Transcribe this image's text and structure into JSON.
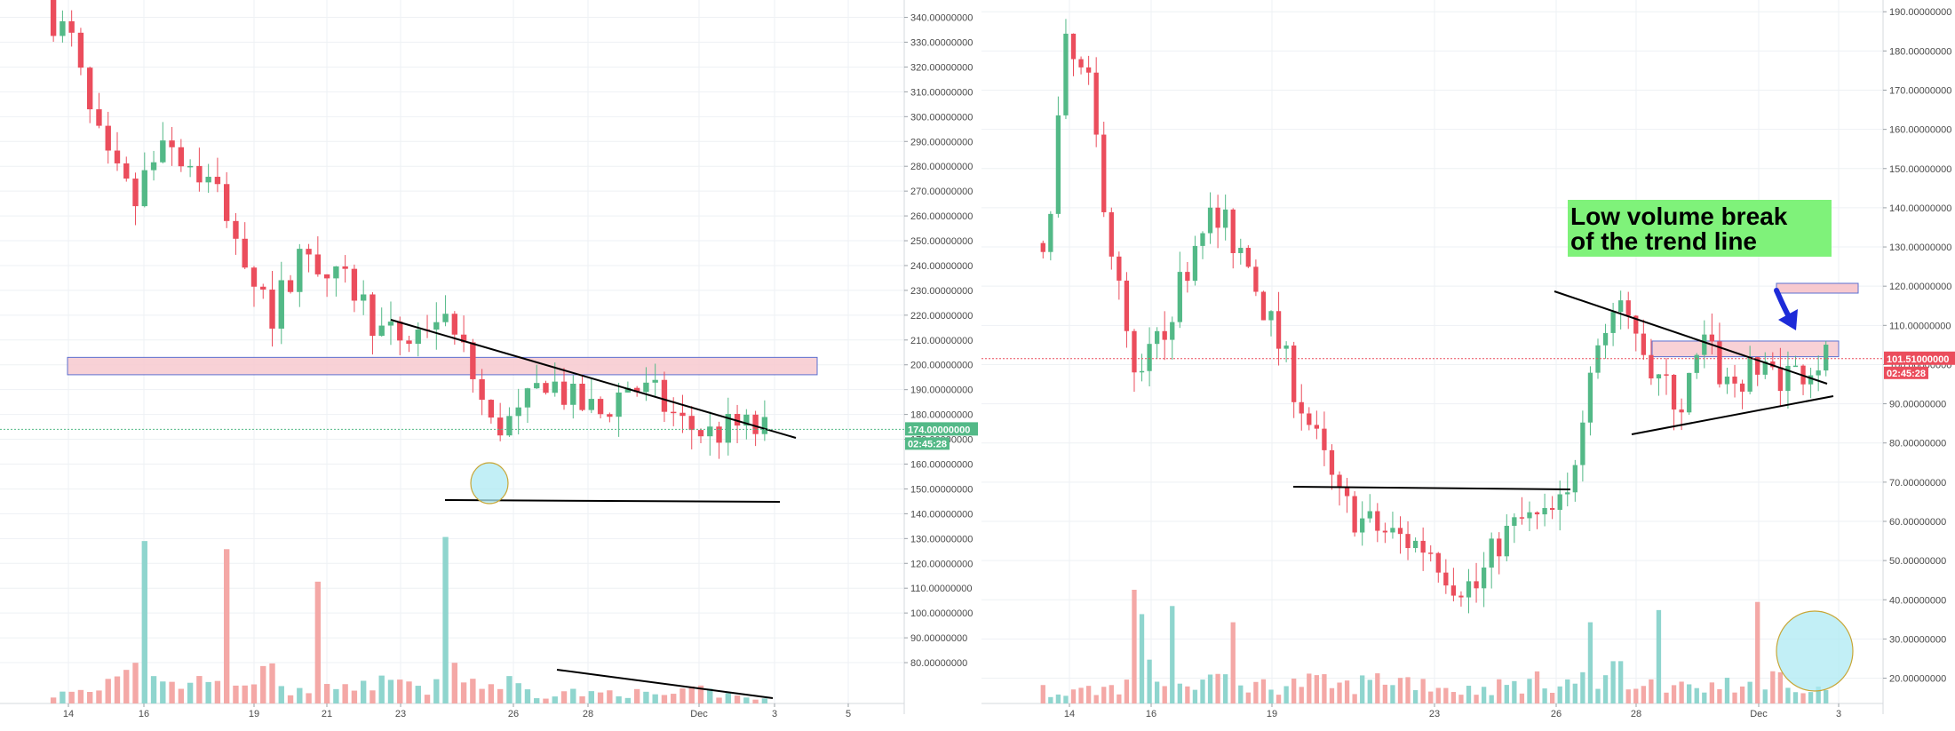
{
  "colors": {
    "up": "#53b987",
    "down": "#eb4d5c",
    "vol_up": "#8fd5ce",
    "vol_down": "#f4a8a6",
    "grid": "#eef1f4",
    "axis_text": "#4a4a4a",
    "zone_fill": "#f7c9cf",
    "zone_stroke": "#5b6fd0",
    "trend": "#000000",
    "price_tag_green": "#53b987",
    "price_tag_red": "#eb4d5c",
    "annotation_bg": "#7ff27a",
    "arrow": "#1d2bd8",
    "circle_fill": "#aee9f3",
    "circle_stroke": "#c7a636"
  },
  "chart_data": [
    {
      "type": "candlestick",
      "title": "",
      "ylim": [
        75,
        347
      ],
      "y_ticks": [
        "340.00000000",
        "330.00000000",
        "320.00000000",
        "310.00000000",
        "300.00000000",
        "290.00000000",
        "280.00000000",
        "270.00000000",
        "260.00000000",
        "250.00000000",
        "240.00000000",
        "230.00000000",
        "220.00000000",
        "210.00000000",
        "200.00000000",
        "190.00000000",
        "180.00000000",
        "170.00000000",
        "160.00000000",
        "150.00000000",
        "140.00000000",
        "130.00000000",
        "120.00000000",
        "110.00000000",
        "100.00000000",
        "90.00000000",
        "80.00000000"
      ],
      "x_ticks": [
        "14",
        "16",
        "19",
        "21",
        "23",
        "26",
        "28",
        "Dec",
        "3",
        "5"
      ],
      "last_price": "174.00000000",
      "countdown": "02:45:28",
      "anchors": [
        [
          0,
          340
        ],
        [
          2,
          330
        ],
        [
          4,
          300
        ],
        [
          6,
          280
        ],
        [
          9,
          265
        ],
        [
          12,
          295
        ],
        [
          14,
          285
        ],
        [
          18,
          270
        ],
        [
          21,
          245
        ],
        [
          24,
          220
        ],
        [
          27,
          245
        ],
        [
          30,
          235
        ],
        [
          33,
          230
        ],
        [
          36,
          213
        ],
        [
          39,
          210
        ],
        [
          42,
          220
        ],
        [
          45,
          205
        ],
        [
          48,
          175
        ],
        [
          51,
          178
        ],
        [
          54,
          195
        ],
        [
          57,
          185
        ],
        [
          60,
          180
        ],
        [
          63,
          192
        ],
        [
          66,
          187
        ],
        [
          69,
          176
        ],
        [
          72,
          172
        ],
        [
          75,
          175
        ],
        [
          78,
          173
        ]
      ],
      "volume_anchors": [
        [
          0,
          2
        ],
        [
          5,
          3
        ],
        [
          8,
          10
        ],
        [
          11,
          7
        ],
        [
          14,
          4
        ],
        [
          17,
          5
        ],
        [
          20,
          3
        ],
        [
          23,
          8
        ],
        [
          26,
          4
        ],
        [
          29,
          3
        ],
        [
          32,
          6
        ],
        [
          35,
          5
        ],
        [
          38,
          4
        ],
        [
          41,
          3
        ],
        [
          44,
          9
        ],
        [
          47,
          4
        ],
        [
          50,
          5
        ],
        [
          53,
          2
        ],
        [
          56,
          3
        ],
        [
          59,
          2
        ],
        [
          62,
          3
        ],
        [
          65,
          2
        ],
        [
          68,
          2
        ],
        [
          71,
          3
        ],
        [
          74,
          2
        ],
        [
          78,
          1
        ]
      ],
      "volume_spikes": [
        [
          10,
          40
        ],
        [
          19,
          38
        ],
        [
          29,
          30
        ],
        [
          43,
          41
        ]
      ],
      "support_zone": [
        196,
        203
      ],
      "annotations": []
    },
    {
      "type": "candlestick",
      "title": "",
      "ylim": [
        14,
        193
      ],
      "y_ticks": [
        "190.00000000",
        "180.00000000",
        "170.00000000",
        "160.00000000",
        "150.00000000",
        "140.00000000",
        "130.00000000",
        "120.00000000",
        "110.00000000",
        "100.00000000",
        "90.00000000",
        "80.00000000",
        "70.00000000",
        "60.00000000",
        "50.00000000",
        "40.00000000",
        "30.00000000",
        "20.00000000"
      ],
      "x_ticks": [
        "14",
        "16",
        "19",
        "23",
        "26",
        "28",
        "Dec",
        "3"
      ],
      "last_price": "101.51000000",
      "countdown": "02:45:28",
      "anchors": [
        [
          0,
          125
        ],
        [
          3,
          180
        ],
        [
          6,
          170
        ],
        [
          9,
          130
        ],
        [
          12,
          95
        ],
        [
          15,
          105
        ],
        [
          18,
          120
        ],
        [
          21,
          138
        ],
        [
          24,
          135
        ],
        [
          27,
          125
        ],
        [
          30,
          110
        ],
        [
          33,
          95
        ],
        [
          36,
          80
        ],
        [
          39,
          65
        ],
        [
          42,
          60
        ],
        [
          45,
          57
        ],
        [
          48,
          55
        ],
        [
          51,
          53
        ],
        [
          54,
          45
        ],
        [
          57,
          43
        ],
        [
          60,
          55
        ],
        [
          63,
          60
        ],
        [
          66,
          60
        ],
        [
          69,
          65
        ],
        [
          72,
          102
        ],
        [
          75,
          113
        ],
        [
          78,
          110
        ],
        [
          81,
          95
        ],
        [
          84,
          90
        ],
        [
          87,
          105
        ],
        [
          90,
          95
        ],
        [
          93,
          97
        ],
        [
          96,
          98
        ],
        [
          99,
          98
        ],
        [
          102,
          101
        ],
        [
          103,
          101.5
        ]
      ],
      "volume_anchors": [
        [
          0,
          3
        ],
        [
          5,
          3
        ],
        [
          10,
          4
        ],
        [
          15,
          8
        ],
        [
          20,
          6
        ],
        [
          25,
          5
        ],
        [
          30,
          4
        ],
        [
          35,
          5
        ],
        [
          40,
          4
        ],
        [
          45,
          6
        ],
        [
          50,
          5
        ],
        [
          55,
          3
        ],
        [
          60,
          4
        ],
        [
          65,
          5
        ],
        [
          70,
          5
        ],
        [
          75,
          7
        ],
        [
          80,
          5
        ],
        [
          85,
          4
        ],
        [
          90,
          4
        ],
        [
          95,
          6
        ],
        [
          100,
          4
        ],
        [
          103,
          3
        ]
      ],
      "volume_spikes": [
        [
          12,
          28
        ],
        [
          13,
          22
        ],
        [
          17,
          24
        ],
        [
          25,
          20
        ],
        [
          72,
          20
        ],
        [
          81,
          23
        ],
        [
          94,
          25
        ]
      ],
      "support_zone": [
        102,
        106
      ],
      "annotations": [
        "Low volume break",
        "of the trend line"
      ]
    }
  ]
}
